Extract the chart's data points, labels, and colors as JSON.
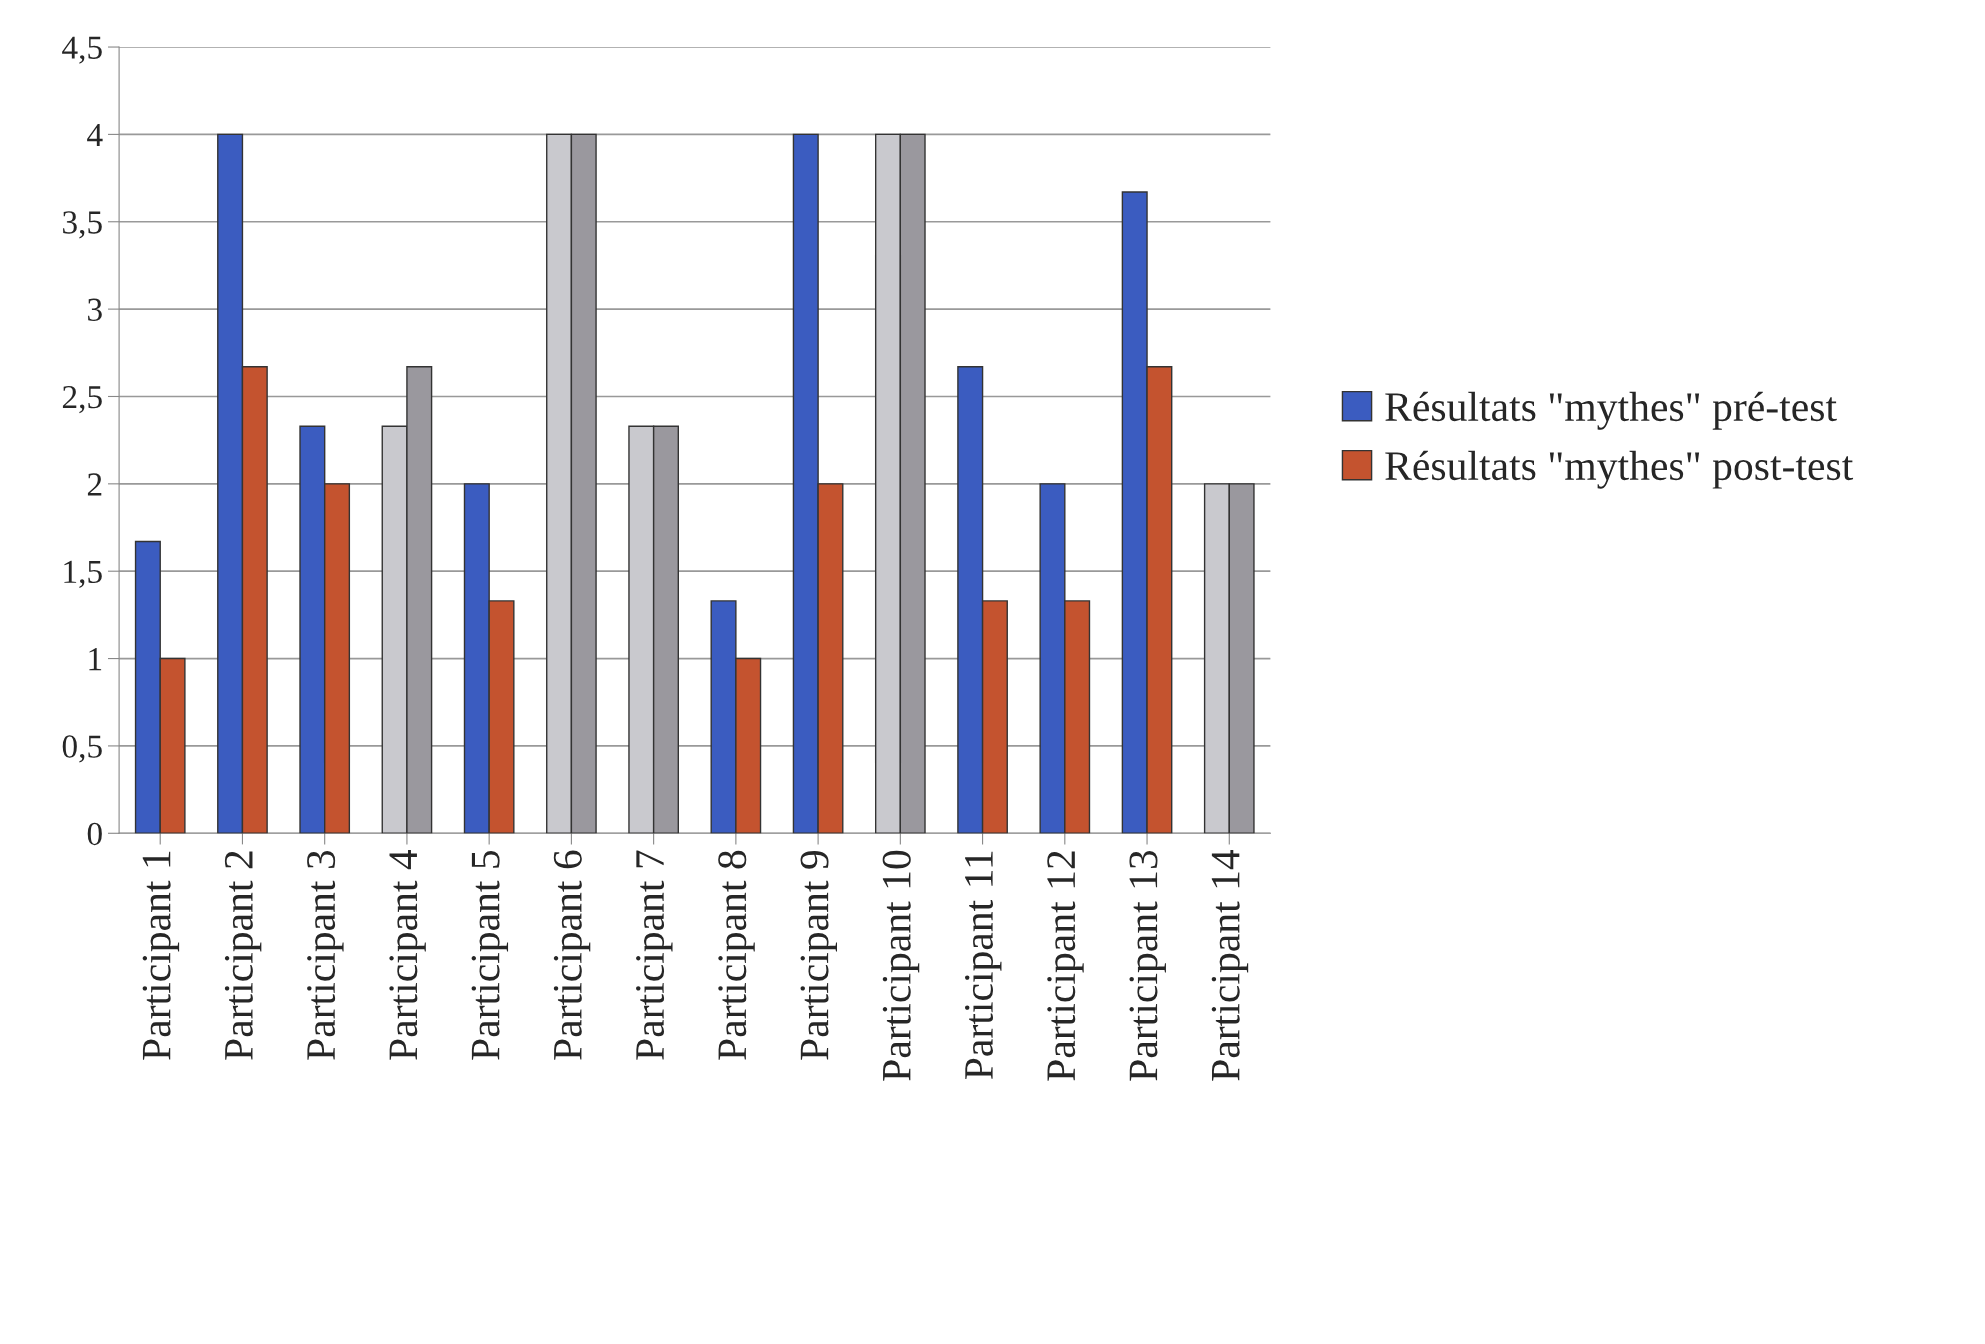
{
  "chart_data": {
    "type": "bar",
    "categories": [
      "Participant 1",
      "Participant 2",
      "Participant 3",
      "Participant 4",
      "Participant 5",
      "Participant 6",
      "Participant 7",
      "Participant 8",
      "Participant 9",
      "Participant 10",
      "Participant 11",
      "Participant 12",
      "Participant 13",
      "Participant 14"
    ],
    "series": [
      {
        "name": "Résultats \"mythes\" pré-test",
        "color": "#3b5cc0",
        "colors": [
          "#3b5cc0",
          "#3b5cc0",
          "#3b5cc0",
          "#c9c9ce",
          "#3b5cc0",
          "#c9c9ce",
          "#c9c9ce",
          "#3b5cc0",
          "#3b5cc0",
          "#c9c9ce",
          "#3b5cc0",
          "#3b5cc0",
          "#3b5cc0",
          "#c9c9ce"
        ],
        "values": [
          1.67,
          4,
          2.33,
          2.33,
          2,
          4,
          2.33,
          1.33,
          4,
          4,
          2.67,
          2,
          3.67,
          2
        ]
      },
      {
        "name": "Résultats \"mythes\" post-test",
        "color": "#c4532f",
        "colors": [
          "#c4532f",
          "#c4532f",
          "#c4532f",
          "#9a989e",
          "#c4532f",
          "#9a989e",
          "#9a989e",
          "#c4532f",
          "#c4532f",
          "#9a989e",
          "#c4532f",
          "#c4532f",
          "#c4532f",
          "#9a989e"
        ],
        "values": [
          1,
          2.67,
          2,
          2.67,
          1.33,
          4,
          2.33,
          1,
          2,
          4,
          1.33,
          1.33,
          2.67,
          2
        ]
      }
    ],
    "ylim": [
      0,
      4.5
    ],
    "yticks": [
      0,
      {
        "value": 0.5,
        "label": "0,5"
      },
      1,
      {
        "value": 1.5,
        "label": "1,5"
      },
      2,
      {
        "value": 2.5,
        "label": "2,5"
      },
      3,
      {
        "value": 3.5,
        "label": "3,5"
      },
      4,
      {
        "value": 4.5,
        "label": "4,5"
      }
    ],
    "grid": "y",
    "legend": "right"
  }
}
